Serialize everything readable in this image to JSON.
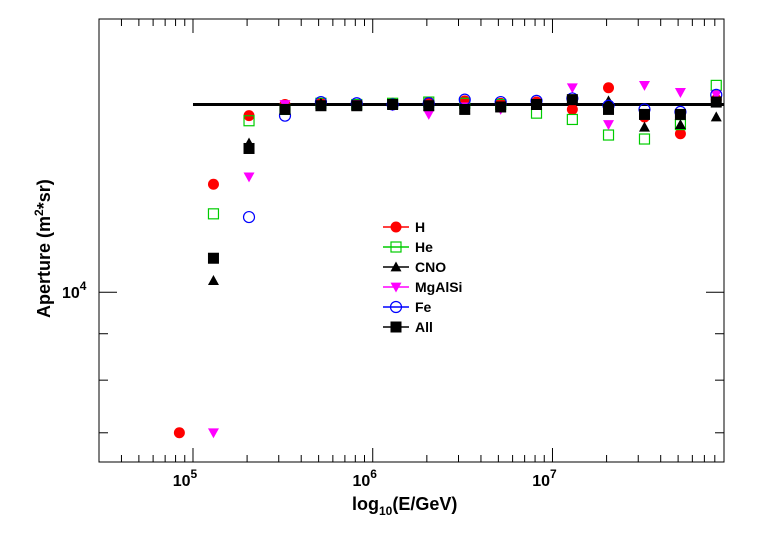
{
  "chart_data": {
    "type": "scatter",
    "title": "",
    "xscale": "log",
    "yscale": "log",
    "xlim": [
      30000,
      90000000
    ],
    "ylim": [
      6500,
      20000
    ],
    "xlabel": {
      "base": "log",
      "sub": "10",
      "rest": "(E/GeV)"
    },
    "ylabel": {
      "before": "Aperture (m",
      "sup": "2",
      "after": "*sr)"
    },
    "x_ticks": [
      {
        "value": 100000,
        "base": "10",
        "exp": "5"
      },
      {
        "value": 1000000,
        "base": "10",
        "exp": "6"
      },
      {
        "value": 10000000,
        "base": "10",
        "exp": "7"
      }
    ],
    "y_ticks": [
      {
        "value": 10000,
        "base": "10",
        "exp": "4"
      }
    ],
    "reference_line": {
      "x_start": 100000,
      "x_end": 90000000,
      "y": 16100,
      "color": "#000000"
    },
    "legend_position": "center",
    "series": [
      {
        "name": "H",
        "color": "#ff0000",
        "marker": "circle-filled",
        "x": [
          84000,
          130000,
          205000,
          325000,
          515000,
          815000,
          1290000,
          2050000,
          3250000,
          5150000,
          8150000,
          12900000,
          20500000,
          32500000,
          51500000,
          81500000
        ],
        "y": [
          7000,
          13150,
          15650,
          16100,
          16150,
          16100,
          16150,
          16200,
          16250,
          16150,
          16200,
          15900,
          16800,
          15600,
          14950,
          16300
        ]
      },
      {
        "name": "He",
        "color": "#00cc00",
        "marker": "square-open",
        "x": [
          130000,
          205000,
          325000,
          515000,
          815000,
          1290000,
          2050000,
          3250000,
          5150000,
          8150000,
          12900000,
          20500000,
          32500000,
          51500000,
          81500000
        ],
        "y": [
          12200,
          15450,
          15900,
          16150,
          16100,
          16150,
          16200,
          16150,
          16100,
          15750,
          15500,
          14900,
          14750,
          15300,
          16900
        ]
      },
      {
        "name": "CNO",
        "color": "#000000",
        "marker": "triangle-up-filled",
        "x": [
          130000,
          205000,
          325000,
          515000,
          815000,
          1290000,
          2050000,
          3250000,
          5150000,
          8150000,
          12900000,
          20500000,
          32500000,
          51500000,
          81500000
        ],
        "y": [
          10300,
          14600,
          16000,
          16150,
          16050,
          16100,
          16050,
          15900,
          16000,
          16100,
          16300,
          16250,
          15200,
          15300,
          15600
        ]
      },
      {
        "name": "MgAlSi",
        "color": "#ff00ff",
        "marker": "triangle-down-filled",
        "x": [
          130000,
          205000,
          325000,
          515000,
          815000,
          1290000,
          2050000,
          3250000,
          5150000,
          8150000,
          12900000,
          20500000,
          32500000,
          51500000,
          81500000
        ],
        "y": [
          7000,
          13400,
          16100,
          16050,
          16100,
          16050,
          15700,
          16000,
          15900,
          16100,
          16800,
          15300,
          16900,
          16600,
          16500
        ]
      },
      {
        "name": "Fe",
        "color": "#0000ff",
        "marker": "circle-open",
        "x": [
          205000,
          325000,
          515000,
          815000,
          1290000,
          2050000,
          3250000,
          5150000,
          8150000,
          12900000,
          20500000,
          32500000,
          51500000,
          81500000
        ],
        "y": [
          12100,
          15650,
          16200,
          16150,
          16100,
          16150,
          16300,
          16200,
          16250,
          16350,
          16050,
          15900,
          15800,
          16500
        ]
      },
      {
        "name": "All",
        "color": "#000000",
        "marker": "square-filled",
        "x": [
          130000,
          205000,
          325000,
          515000,
          815000,
          1290000,
          2050000,
          3250000,
          5150000,
          8150000,
          12900000,
          20500000,
          32500000,
          51500000,
          81500000
        ],
        "y": [
          10900,
          14400,
          15900,
          16050,
          16050,
          16100,
          16050,
          15900,
          16000,
          16100,
          16300,
          15900,
          15700,
          15700,
          16200
        ]
      }
    ]
  }
}
